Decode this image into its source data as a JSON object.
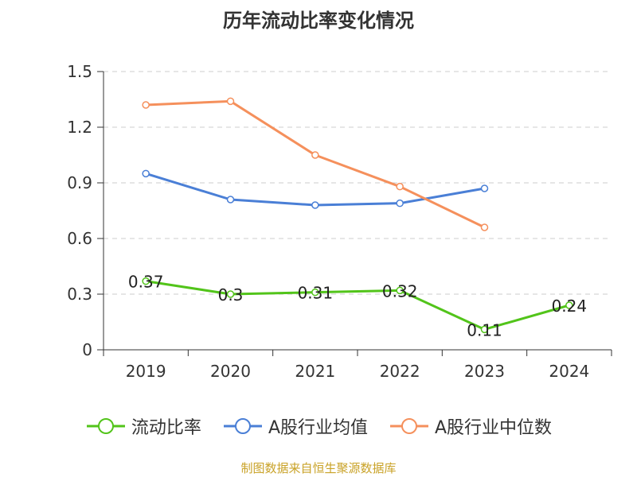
{
  "chart_data": {
    "type": "line",
    "title": "历年流动比率变化情况",
    "categories": [
      "2019",
      "2020",
      "2021",
      "2022",
      "2023",
      "2024"
    ],
    "y_ticks": [
      "0",
      "0.3",
      "0.6",
      "0.9",
      "1.2",
      "1.5"
    ],
    "ylim": [
      0,
      1.5
    ],
    "grid": true,
    "legend_position": "bottom",
    "series": [
      {
        "name": "流动比率",
        "color": "#52c41a",
        "values": [
          0.37,
          0.3,
          0.31,
          0.32,
          0.11,
          0.24
        ],
        "labels": [
          "0.37",
          "0.3",
          "0.31",
          "0.32",
          "0.11",
          "0.24"
        ],
        "show_labels": true
      },
      {
        "name": "A股行业均值",
        "color": "#4a7fd6",
        "values": [
          0.95,
          0.81,
          0.78,
          0.79,
          0.87,
          null
        ],
        "show_labels": false
      },
      {
        "name": "A股行业中位数",
        "color": "#f5905c",
        "values": [
          1.32,
          1.34,
          1.05,
          0.88,
          0.66,
          null
        ],
        "show_labels": false
      }
    ],
    "source": "制图数据来自恒生聚源数据库"
  }
}
